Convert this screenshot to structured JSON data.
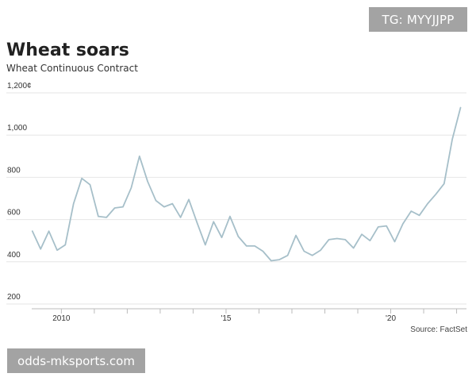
{
  "badge": {
    "text": "TG: MYYJJPP"
  },
  "watermark": {
    "text": "odds-mksports.com"
  },
  "source": {
    "text": "Source: FactSet"
  },
  "colors": {
    "line": "#a6bfc9",
    "grid": "#e6e6e6",
    "axis": "#bbbbbb"
  },
  "chart_data": {
    "type": "line",
    "title": "Wheat soars",
    "subtitle": "Wheat Continuous Contract",
    "xlabel": "",
    "ylabel": "",
    "xlim": [
      2009.1,
      2022.3
    ],
    "ylim": [
      200,
      1200
    ],
    "y_ticks": [
      {
        "value": 1200,
        "label": "1,200¢"
      },
      {
        "value": 1000,
        "label": "1,000"
      },
      {
        "value": 800,
        "label": "800"
      },
      {
        "value": 600,
        "label": "600"
      },
      {
        "value": 400,
        "label": "400"
      },
      {
        "value": 200,
        "label": "200"
      }
    ],
    "x_labels": [
      {
        "value": 2010,
        "label": "2010"
      },
      {
        "value": 2015,
        "label": "'15"
      },
      {
        "value": 2020,
        "label": "'20"
      }
    ],
    "x_ticks": [
      2010,
      2011,
      2012,
      2013,
      2014,
      2015,
      2016,
      2017,
      2018,
      2019,
      2020,
      2021,
      2022
    ],
    "grid": true,
    "series": [
      {
        "x": [
          2009.12,
          2009.37,
          2009.62,
          2009.87,
          2010.12,
          2010.37,
          2010.62,
          2010.87,
          2011.12,
          2011.37,
          2011.62,
          2011.87,
          2012.12,
          2012.37,
          2012.62,
          2012.87,
          2013.12,
          2013.37,
          2013.62,
          2013.87,
          2014.12,
          2014.37,
          2014.62,
          2014.87,
          2015.12,
          2015.37,
          2015.62,
          2015.87,
          2016.12,
          2016.37,
          2016.62,
          2016.87,
          2017.12,
          2017.37,
          2017.62,
          2017.87,
          2018.12,
          2018.37,
          2018.62,
          2018.87,
          2019.12,
          2019.37,
          2019.62,
          2019.87,
          2020.12,
          2020.37,
          2020.62,
          2020.87,
          2021.12,
          2021.37,
          2021.62,
          2021.87,
          2022.12
        ],
        "values": [
          545,
          460,
          545,
          455,
          480,
          675,
          795,
          765,
          615,
          610,
          655,
          660,
          750,
          900,
          780,
          690,
          660,
          675,
          610,
          695,
          585,
          480,
          590,
          515,
          615,
          520,
          475,
          475,
          450,
          405,
          410,
          430,
          525,
          450,
          430,
          455,
          505,
          510,
          505,
          465,
          530,
          500,
          565,
          570,
          495,
          580,
          640,
          620,
          675,
          720,
          770,
          980,
          1130
        ]
      }
    ]
  }
}
